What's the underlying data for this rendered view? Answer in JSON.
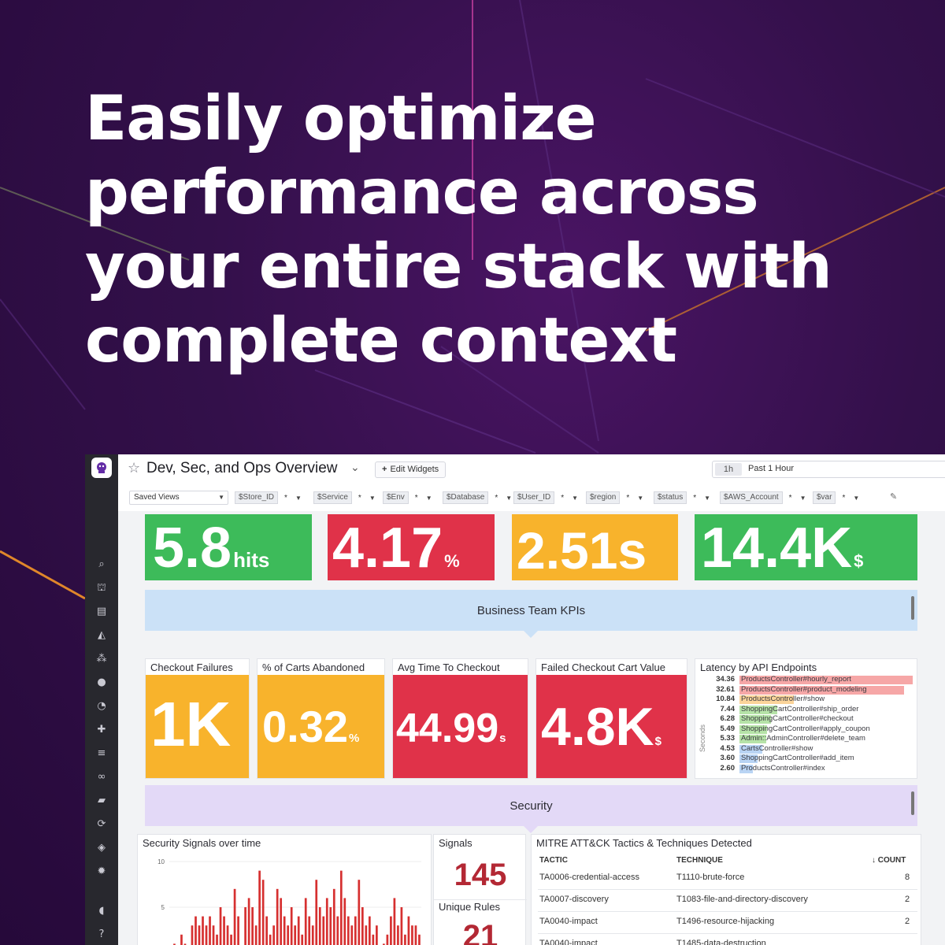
{
  "headline": {
    "lines": [
      "Easily optimize",
      "performance across",
      "your entire stack with",
      "complete context"
    ]
  },
  "dashboard": {
    "title": "Dev, Sec, and Ops Overview",
    "edit_label": "Edit Widgets",
    "time_chip": "1h",
    "time_label": "Past 1 Hour",
    "saved_views": "Saved Views",
    "filters": [
      {
        "name": "$Store_ID",
        "value": "*"
      },
      {
        "name": "$Service",
        "value": "*"
      },
      {
        "name": "$Env",
        "value": "*"
      },
      {
        "name": "$Database",
        "value": "*"
      },
      {
        "name": "$User_ID",
        "value": "*"
      },
      {
        "name": "$region",
        "value": "*"
      },
      {
        "name": "$status",
        "value": "*"
      },
      {
        "name": "$AWS_Account",
        "value": "*"
      },
      {
        "name": "$var",
        "value": "*"
      }
    ],
    "nav_icons": [
      "search-icon",
      "binoculars-icon",
      "list-icon",
      "chart-icon",
      "nodes-icon",
      "alert-icon",
      "gauge-icon",
      "puzzle-icon",
      "logs-icon",
      "link-icon",
      "book-icon",
      "ci-icon",
      "shield-icon",
      "gear-icon",
      "chat-icon",
      "help-icon"
    ],
    "top_kpis": [
      {
        "value": "5.8",
        "unit": "hits",
        "color": "#3dbb5a"
      },
      {
        "value": "4.17",
        "unit": "%",
        "color": "#e03249"
      },
      {
        "value": "2.51s",
        "unit": "",
        "color": "#f8b32c"
      },
      {
        "value": "14.4K",
        "unit": "$",
        "color": "#3dbb5a"
      }
    ],
    "business_group": {
      "title": "Business Team KPIs",
      "color": "#cbe1f7"
    },
    "business_kpis": [
      {
        "title": "Checkout Failures",
        "value": "1K",
        "unit": "",
        "color": "#f8b32c"
      },
      {
        "title": "% of Carts Abandoned",
        "value": "0.32",
        "unit": "%",
        "color": "#f8b32c"
      },
      {
        "title": "Avg Time To Checkout",
        "value": "44.99",
        "unit": "s",
        "color": "#e03249"
      },
      {
        "title": "Failed Checkout Cart Value",
        "value": "4.8K",
        "unit": "$",
        "color": "#e03249"
      }
    ],
    "latency": {
      "title": "Latency by API Endpoints",
      "axis_label": "Seconds",
      "rows": [
        {
          "value": "34.36",
          "num": 34.36,
          "label": "ProductsController#hourly_report",
          "color": "#f6a7a7"
        },
        {
          "value": "32.61",
          "num": 32.61,
          "label": "ProductsController#product_modeling",
          "color": "#f6a7a7"
        },
        {
          "value": "10.84",
          "num": 10.84,
          "label": "ProductsController#show",
          "color": "#fbd49a"
        },
        {
          "value": "7.44",
          "num": 7.44,
          "label": "ShoppingCartController#ship_order",
          "color": "#b6e3a8"
        },
        {
          "value": "6.28",
          "num": 6.28,
          "label": "ShoppingCartController#checkout",
          "color": "#b6e3a8"
        },
        {
          "value": "5.49",
          "num": 5.49,
          "label": "ShoppingCartController#apply_coupon",
          "color": "#b6e3a8"
        },
        {
          "value": "5.33",
          "num": 5.33,
          "label": "Admin::AdminController#delete_team",
          "color": "#b6e3a8"
        },
        {
          "value": "4.53",
          "num": 4.53,
          "label": "CartsController#show",
          "color": "#b9d4f4"
        },
        {
          "value": "3.60",
          "num": 3.6,
          "label": "ShoppingCartController#add_item",
          "color": "#b9d4f4"
        },
        {
          "value": "2.60",
          "num": 2.6,
          "label": "ProductsController#index",
          "color": "#b9d4f4"
        }
      ]
    },
    "security_group": {
      "title": "Security",
      "color": "#e3d9f7"
    },
    "signals_chart": {
      "title": "Security Signals over time",
      "bar_color": "#d63030"
    },
    "signals": {
      "title": "Signals",
      "value": "145"
    },
    "unique_rules": {
      "title": "Unique Rules",
      "value": "21"
    },
    "mitre": {
      "title": "MITRE ATT&CK Tactics & Techniques Detected",
      "headers": {
        "tactic": "TACTIC",
        "technique": "TECHNIQUE",
        "count": "↓  COUNT"
      },
      "rows": [
        {
          "tactic": "TA0006-credential-access",
          "technique": "T1110-brute-force",
          "count": "8"
        },
        {
          "tactic": "TA0007-discovery",
          "technique": "T1083-file-and-directory-discovery",
          "count": "2"
        },
        {
          "tactic": "TA0040-impact",
          "technique": "T1496-resource-hijacking",
          "count": "2"
        },
        {
          "tactic": "TA0040-impact",
          "technique": "T1485-data-destruction",
          "count": ""
        }
      ]
    }
  },
  "chart_data": {
    "type": "bar",
    "title": "Security Signals over time",
    "ylim": [
      0,
      10
    ],
    "yticks": [
      0,
      5,
      10
    ],
    "values": [
      0,
      1,
      0,
      2,
      1,
      0,
      3,
      4,
      3,
      4,
      3,
      4,
      3,
      2,
      5,
      4,
      3,
      2,
      7,
      4,
      0,
      5,
      6,
      5,
      3,
      9,
      8,
      4,
      2,
      3,
      7,
      6,
      4,
      3,
      5,
      3,
      4,
      2,
      6,
      4,
      3,
      8,
      5,
      4,
      6,
      5,
      7,
      4,
      9,
      6,
      4,
      3,
      4,
      8,
      5,
      3,
      4,
      2,
      3,
      0,
      1,
      2,
      4,
      6,
      3,
      5,
      2,
      4,
      3,
      3,
      2
    ]
  }
}
